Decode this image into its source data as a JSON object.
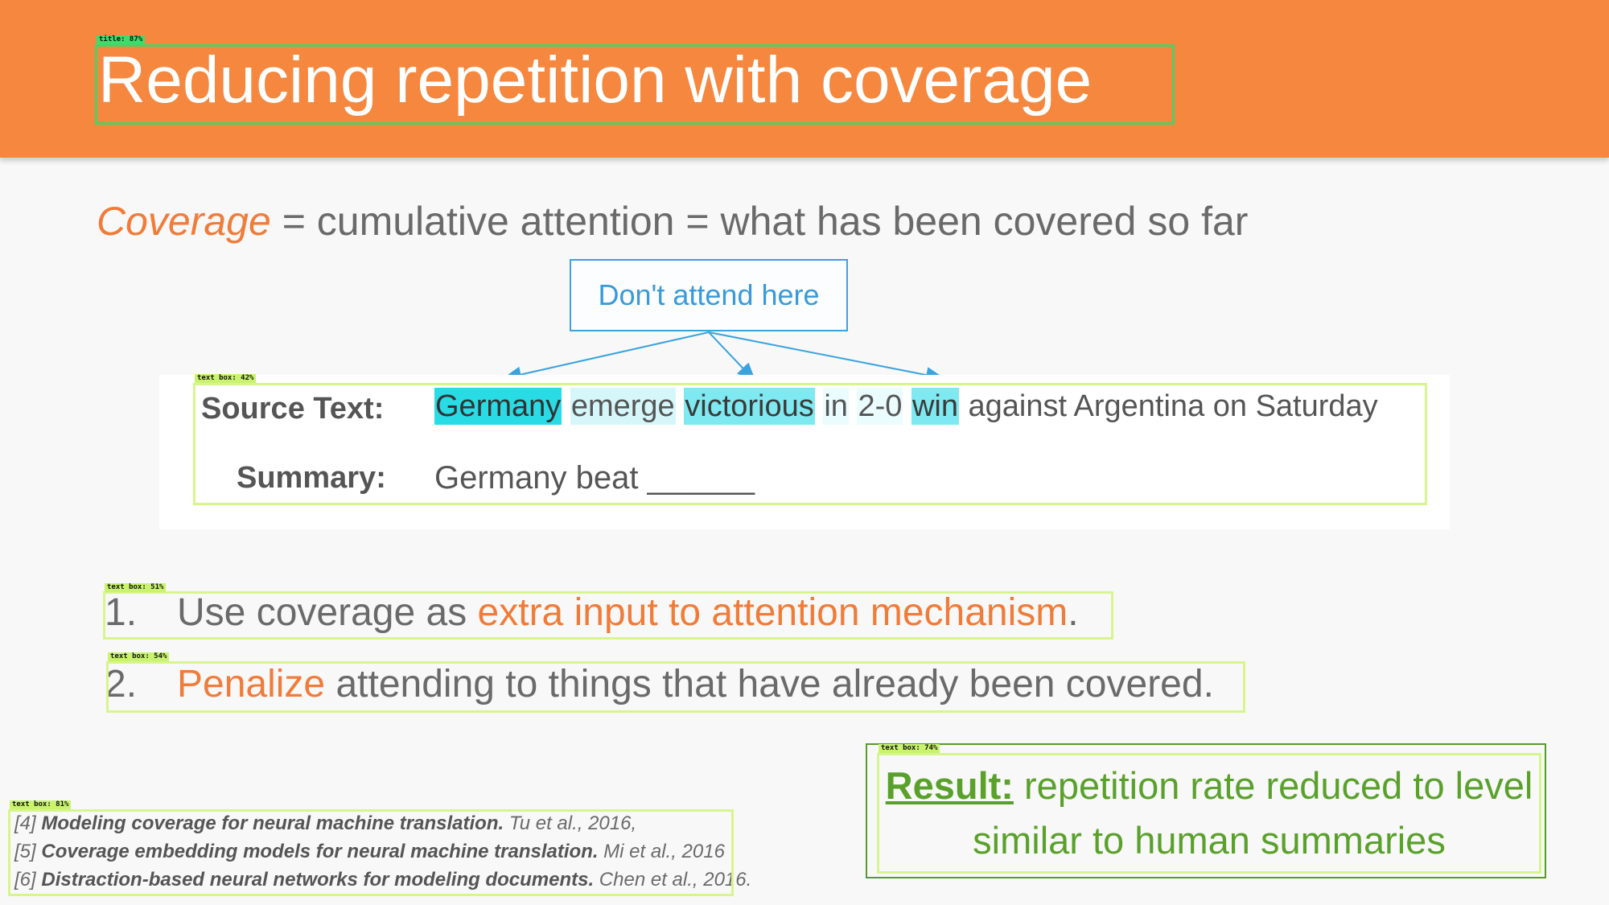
{
  "title": "Reducing repetition with coverage",
  "coverage_line": {
    "term": "Coverage",
    "definition": " = cumulative attention = what has been covered so far"
  },
  "callout": "Don't attend here",
  "figure": {
    "source_label": "Source Text:",
    "summary_label": "Summary:",
    "source_words": [
      "Germany",
      "emerge",
      "victorious",
      "in",
      "2-0",
      "win",
      "against Argentina on Saturday"
    ],
    "summary_text": "Germany beat ______"
  },
  "list": [
    {
      "num": "1.",
      "pre": "Use coverage as ",
      "highlight": "extra input to attention mechanism",
      "post": "."
    },
    {
      "num": "2.",
      "highlight": "Penalize",
      "post": " attending to things that have already been covered."
    }
  ],
  "result": {
    "label": "Result:",
    "text": " repetition rate reduced to level similar to human summaries"
  },
  "references": [
    {
      "num": "[4]",
      "title": "Modeling coverage for neural machine translation.",
      "authors": " Tu et al., 2016,"
    },
    {
      "num": "[5]",
      "title": "Coverage embedding models for neural machine translation.",
      "authors": " Mi et al., 2016"
    },
    {
      "num": "[6]",
      "title": "Distraction-based neural networks for modeling documents.",
      "authors": " Chen et al., 2016."
    }
  ],
  "detections": {
    "title": "title: 87%",
    "figure": "text box: 42%",
    "item1": "text box: 51%",
    "item2": "text box: 54%",
    "result": "text box: 74%",
    "refs": "text box: 81%"
  },
  "colors": {
    "header": "#f5873f",
    "accent": "#f07c3a",
    "callout": "#3aa3dd",
    "result": "#5aa12c",
    "highlight_strong": "#29dbe5",
    "detection_box": "#d7f58e"
  }
}
